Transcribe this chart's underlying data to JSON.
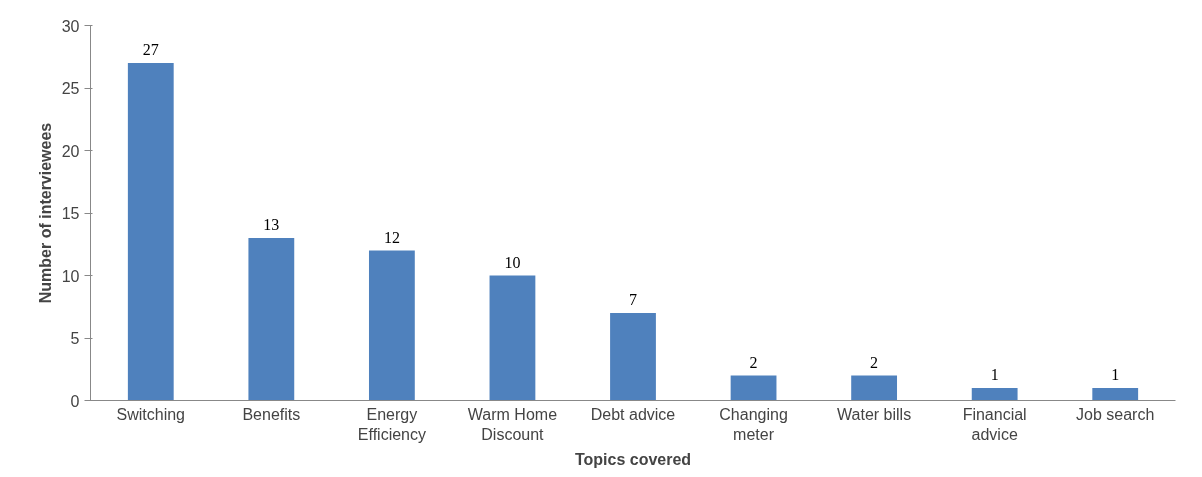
{
  "chart_data": {
    "type": "bar",
    "xlabel": "Topics covered",
    "ylabel": "Number of interviewees",
    "categories": [
      "Switching",
      "Benefits",
      "Energy\nEfficiency",
      "Warm Home\nDiscount",
      "Debt advice",
      "Changing\nmeter",
      "Water bills",
      "Financial\nadvice",
      "Job search"
    ],
    "values": [
      27,
      13,
      12,
      10,
      7,
      2,
      2,
      1,
      1
    ],
    "color": "#4f81bd",
    "ylim": [
      0,
      30
    ],
    "yticks": [
      0,
      5,
      10,
      15,
      20,
      25,
      30
    ],
    "grid": false,
    "data_labels": true
  }
}
